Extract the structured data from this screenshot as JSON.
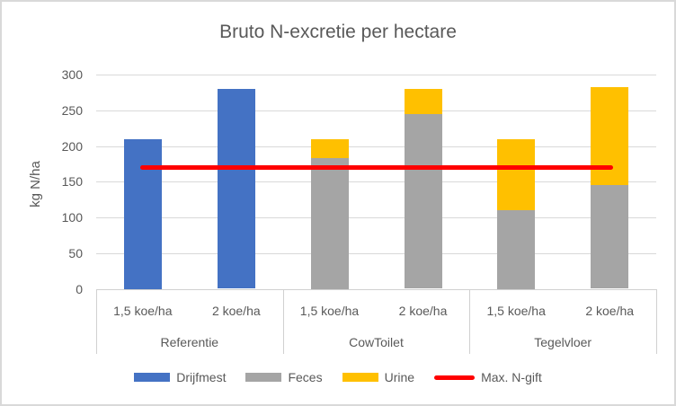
{
  "chart_data": {
    "type": "bar",
    "stacked": true,
    "title": "Bruto N-excretie per hectare",
    "xlabel": "",
    "ylabel": "kg N/ha",
    "ylim": [
      0,
      300
    ],
    "yticks": [
      0,
      50,
      100,
      150,
      200,
      250,
      300
    ],
    "grid": true,
    "legend_position": "bottom",
    "series": [
      {
        "name": "Drijfmest",
        "color": "#4472C4"
      },
      {
        "name": "Feces",
        "color": "#A5A5A5"
      },
      {
        "name": "Urine",
        "color": "#FFC000"
      }
    ],
    "groups": [
      {
        "label": "Referentie",
        "bars": [
          {
            "label": "1,5 koe/ha",
            "values": [
              210,
              0,
              0
            ]
          },
          {
            "label": "2 koe/ha",
            "values": [
              280,
              0,
              0
            ]
          }
        ]
      },
      {
        "label": "CowToilet",
        "bars": [
          {
            "label": "1,5 koe/ha",
            "values": [
              0,
              183,
              27
            ]
          },
          {
            "label": "2 koe/ha",
            "values": [
              0,
              245,
              35
            ]
          }
        ]
      },
      {
        "label": "Tegelvloer",
        "bars": [
          {
            "label": "1,5 koe/ha",
            "values": [
              0,
              110,
              100
            ]
          },
          {
            "label": "2 koe/ha",
            "values": [
              0,
              145,
              137
            ]
          }
        ]
      }
    ],
    "ref_line": {
      "name": "Max. N-gift",
      "value": 170,
      "color": "#FF0000"
    },
    "legend": [
      {
        "label": "Drijfmest",
        "color": "#4472C4",
        "marker": "box"
      },
      {
        "label": "Feces",
        "color": "#A5A5A5",
        "marker": "box"
      },
      {
        "label": "Urine",
        "color": "#FFC000",
        "marker": "box"
      },
      {
        "label": "Max. N-gift",
        "color": "#FF0000",
        "marker": "line"
      }
    ],
    "colors": {
      "gridline": "#D9D9D9",
      "axis": "#D0D0D0",
      "text": "#595959",
      "chart_border": "#D9D9D9",
      "background": "#FFFFFF"
    }
  }
}
